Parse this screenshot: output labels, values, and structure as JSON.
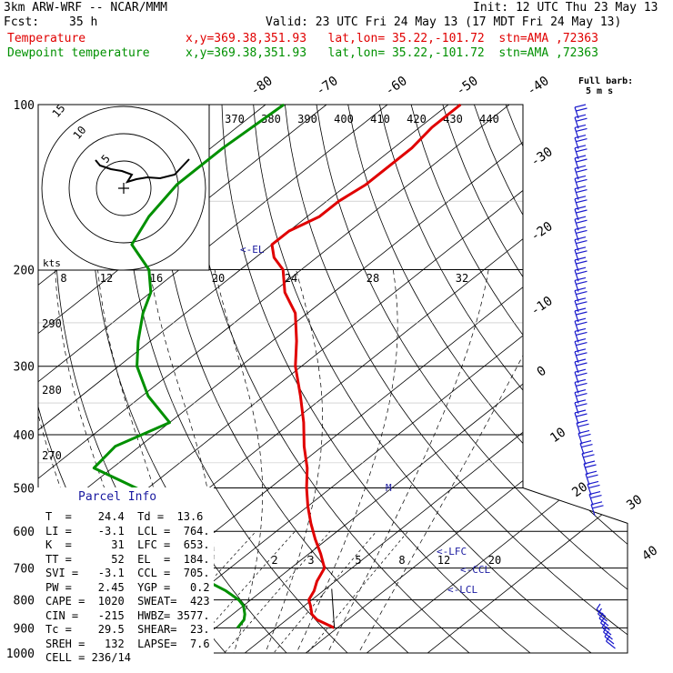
{
  "header": {
    "model": "3km ARW-WRF -- NCAR/MMM",
    "init": "Init: 12 UTC Thu 23 May 13",
    "fcst_label": "Fcst:",
    "fcst_value": "35 h",
    "valid": "Valid: 23 UTC Fri 24 May 13 (17 MDT Fri 24 May 13)",
    "temp_label": "Temperature",
    "temp_info": "x,y=369.38,351.93   lat,lon= 35.22,-101.72  stn=AMA ,72363",
    "dew_label": "Dewpoint temperature",
    "dew_info": "x,y=369.38,351.93   lat,lon= 35.22,-101.72  stn=AMA ,72363",
    "full_barb": "Full barb:",
    "full_barb_units": "5 m s"
  },
  "colors": {
    "temperature": "#e00000",
    "dewpoint": "#009000",
    "parcel": "#000000",
    "barbs": "#1a1acc"
  },
  "chart_data": {
    "type": "line",
    "subtype": "skew-T log-p",
    "pressure_levels": [
      100,
      200,
      300,
      400,
      500,
      600,
      700,
      800,
      900,
      1000
    ],
    "pressure_labels": [
      "100",
      "200",
      "300",
      "400",
      "500",
      "600",
      "700",
      "800",
      "900",
      "1000"
    ],
    "temperature_labels": [
      "-80",
      "-70",
      "-60",
      "-50",
      "-40",
      "-30",
      "-20",
      "-10",
      "0",
      "10",
      "20",
      "30",
      "40"
    ],
    "theta_labels": [
      "370",
      "380",
      "390",
      "400",
      "410",
      "420",
      "430",
      "440"
    ],
    "theta_side_labels": [
      "290",
      "280",
      "270"
    ],
    "mixing_ratio_top": [
      "8",
      "12",
      "16",
      "20",
      "24",
      "28",
      "32"
    ],
    "mixing_ratio_low": [
      "2",
      "3",
      "5",
      "8",
      "12",
      "20"
    ],
    "annotations": [
      "<-EL",
      "M",
      "<-LFC",
      "<-CCL",
      "<-LCL"
    ],
    "series": [
      {
        "name": "Temperature",
        "p": [
          900,
          870,
          850,
          820,
          800,
          770,
          740,
          700,
          660,
          620,
          580,
          540,
          500,
          460,
          420,
          380,
          340,
          300,
          270,
          240,
          220,
          200,
          190,
          180,
          170,
          160,
          150,
          140,
          130,
          120,
          110,
          100
        ],
        "t": [
          29.5,
          25,
          23,
          21,
          19.5,
          18.5,
          17,
          15.5,
          12,
          8,
          4,
          0,
          -4,
          -8,
          -13,
          -18,
          -24,
          -31,
          -36,
          -42,
          -48,
          -53,
          -57,
          -60,
          -60,
          -58,
          -58,
          -57,
          -57,
          -57,
          -58,
          -58
        ]
      },
      {
        "name": "Dewpoint temperature",
        "p": [
          900,
          870,
          850,
          820,
          800,
          770,
          740,
          700,
          660,
          620,
          580,
          540,
          500,
          460,
          420,
          380,
          340,
          300,
          270,
          240,
          220,
          200,
          180,
          160,
          140,
          120,
          100
        ],
        "t": [
          13.6,
          13,
          12,
          10,
          8,
          4,
          -1,
          -4,
          -7,
          -9,
          -15,
          -22,
          -32,
          -43,
          -44,
          -40,
          -49,
          -57,
          -62,
          -67,
          -70,
          -75,
          -83,
          -86,
          -88,
          -88,
          -87
        ]
      }
    ]
  },
  "hodograph": {
    "ring_labels": [
      "5",
      "10",
      "15"
    ],
    "units": "kts"
  },
  "parcel_info": {
    "title": "Parcel Info",
    "rows": [
      "T  =    24.4  Td =  13.6",
      "LI =    -3.1  LCL =  764.",
      "K  =      31  LFC =  653.",
      "TT =      52  EL  =  184.",
      "SVI =   -3.1  CCL =  705.",
      "PW =    2.45  YGP =   0.2",
      "CAPE =  1020  SWEAT=  423",
      "CIN =   -215  HWBZ= 3577.",
      "Tc =    29.5  SHEAR=  23.",
      "SREH =   132  LAPSE=  7.6",
      "CELL = 236/14"
    ]
  }
}
